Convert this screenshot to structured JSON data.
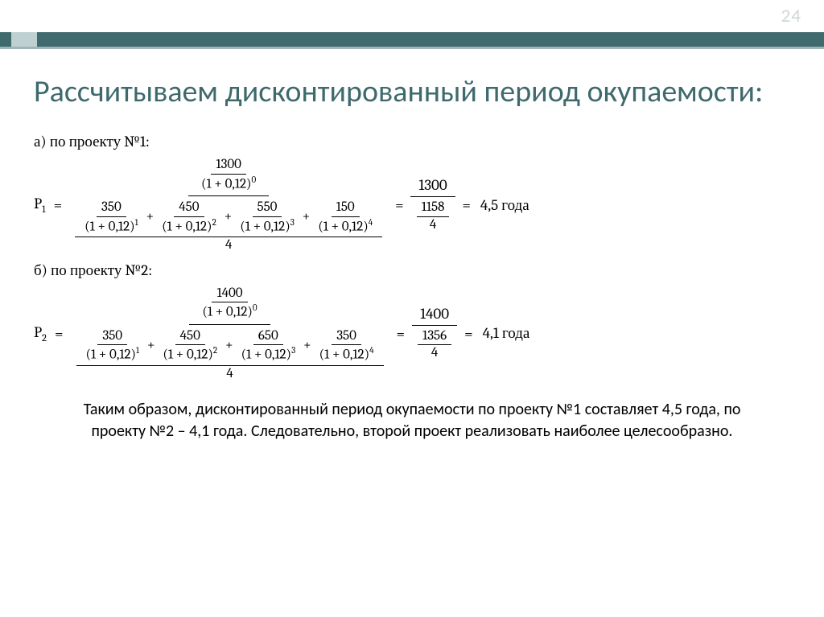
{
  "page_number": "24",
  "title": "Рассчитываем дисконтированный период окупаемости:",
  "colors": {
    "accent_dark": "#3f6a6e",
    "accent_light": "#bfd0d1",
    "page_num": "#d0d6d6",
    "text": "#000000",
    "bg": "#ffffff"
  },
  "section_a": {
    "label": "а) по проекту №1:",
    "P_symbol": "P",
    "P_sub": "1",
    "top_num": "1300",
    "top_den_base": "(1 + 0,12)",
    "top_den_exp": "0",
    "terms": [
      {
        "num": "350",
        "den_base": "(1 + 0,12)",
        "den_exp": "1"
      },
      {
        "num": "450",
        "den_base": "(1 + 0,12)",
        "den_exp": "2"
      },
      {
        "num": "550",
        "den_base": "(1 + 0,12)",
        "den_exp": "3"
      },
      {
        "num": "150",
        "den_base": "(1 + 0,12)",
        "den_exp": "4"
      }
    ],
    "denom_divisor": "4",
    "result_top": "1300",
    "result_mid": "1158",
    "result_bot": "4",
    "answer": "4,5 года"
  },
  "section_b": {
    "label": "б) по проекту №2:",
    "P_symbol": "P",
    "P_sub": "2",
    "top_num": "1400",
    "top_den_base": "(1 + 0,12)",
    "top_den_exp": "0",
    "terms": [
      {
        "num": "350",
        "den_base": "(1 + 0,12)",
        "den_exp": "1"
      },
      {
        "num": "450",
        "den_base": "(1 + 0,12)",
        "den_exp": "2"
      },
      {
        "num": "650",
        "den_base": "(1 + 0,12)",
        "den_exp": "3"
      },
      {
        "num": "350",
        "den_base": "(1 + 0,12)",
        "den_exp": "4"
      }
    ],
    "denom_divisor": "4",
    "result_top": "1400",
    "result_mid": "1356",
    "result_bot": "4",
    "answer": "4,1 года"
  },
  "conclusion": "Таким образом, дисконтированный период окупаемости по проекту №1 составляет 4,5 года, по проекту №2 – 4,1 года. Следовательно, второй проект реализовать наиболее целесообразно."
}
